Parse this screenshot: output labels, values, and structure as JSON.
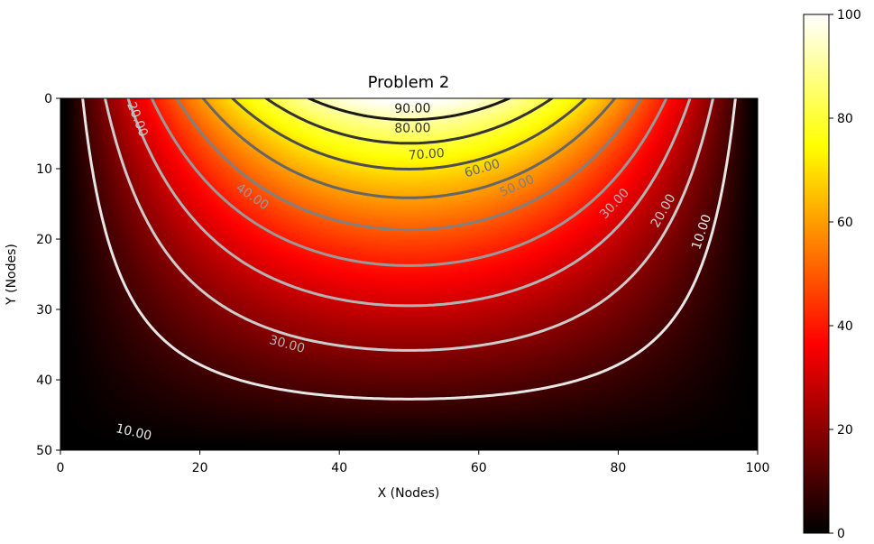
{
  "chart_data": {
    "type": "heatmap",
    "title": "Problem 2",
    "xlabel": "X (Nodes)",
    "ylabel": "Y (Nodes)",
    "xlim": [
      0,
      100
    ],
    "ylim": [
      50,
      0
    ],
    "x_ticks": [
      0,
      20,
      40,
      60,
      80,
      100
    ],
    "y_ticks": [
      0,
      10,
      20,
      30,
      40,
      50
    ],
    "colormap": "hot",
    "colorbar": {
      "min": 0,
      "max": 100,
      "ticks": [
        0,
        20,
        40,
        60,
        80,
        100
      ]
    },
    "boundary_condition": {
      "edge": "top",
      "peak_value": 100,
      "peak_x": 50
    },
    "contour_levels": [
      10,
      20,
      30,
      40,
      50,
      60,
      70,
      80,
      90
    ],
    "contour_labels": [
      {
        "text": "90.00",
        "x": 50.5,
        "y": 1.5
      },
      {
        "text": "80.00",
        "x": 50.5,
        "y": 4.3
      },
      {
        "text": "70.00",
        "x": 52.5,
        "y": 8.0
      },
      {
        "text": "60.00",
        "x": 60.5,
        "y": 10.0
      },
      {
        "text": "50.00",
        "x": 65.5,
        "y": 12.5
      },
      {
        "text": "40.00",
        "x": 27.5,
        "y": 14.0
      },
      {
        "text": "30.00",
        "x": 32.5,
        "y": 35.0
      },
      {
        "text": "30.00",
        "x": 79.5,
        "y": 15.0
      },
      {
        "text": "20.00",
        "x": 11.0,
        "y": 3.0
      },
      {
        "text": "20.00",
        "x": 86.5,
        "y": 16.0
      },
      {
        "text": "10.00",
        "x": 10.5,
        "y": 47.5
      },
      {
        "text": "10.00",
        "x": 92.0,
        "y": 19.0
      }
    ]
  }
}
